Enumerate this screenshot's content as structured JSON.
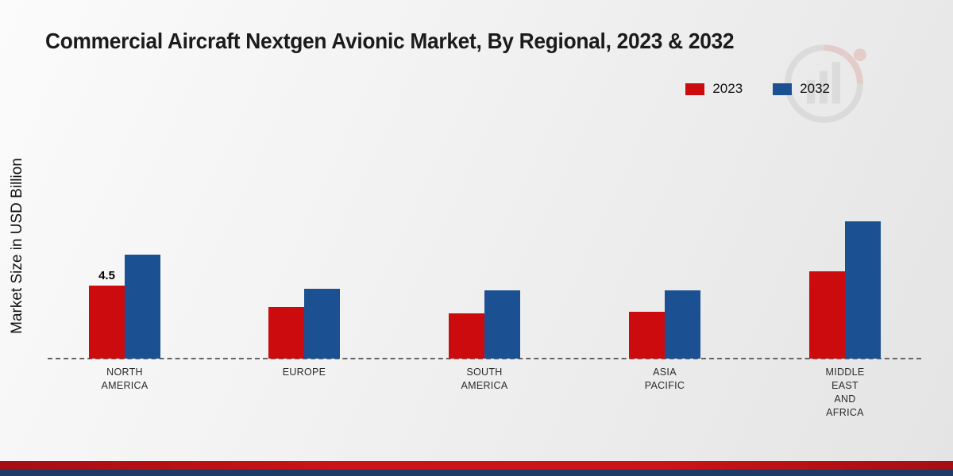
{
  "title": "Commercial Aircraft Nextgen Avionic Market, By Regional, 2023 & 2032",
  "y_axis_label": "Market Size in USD Billion",
  "legend": {
    "items": [
      {
        "label": "2023",
        "color": "#cc0b0e"
      },
      {
        "label": "2032",
        "color": "#1b5192"
      }
    ]
  },
  "chart_data": {
    "type": "bar",
    "title": "Commercial Aircraft Nextgen Avionic Market, By Regional, 2023 & 2032",
    "xlabel": "",
    "ylabel": "Market Size in USD Billion",
    "units": "USD Billion",
    "categories": [
      "NORTH AMERICA",
      "EUROPE",
      "SOUTH AMERICA",
      "ASIA PACIFIC",
      "MIDDLE EAST AND AFRICA"
    ],
    "category_lines": [
      [
        "NORTH",
        "AMERICA"
      ],
      [
        "EUROPE"
      ],
      [
        "SOUTH",
        "AMERICA"
      ],
      [
        "ASIA",
        "PACIFIC"
      ],
      [
        "MIDDLE",
        "EAST",
        "AND",
        "AFRICA"
      ]
    ],
    "series": [
      {
        "name": "2023",
        "color": "#cc0b0e",
        "values": [
          4.5,
          3.2,
          2.8,
          2.9,
          5.4
        ]
      },
      {
        "name": "2032",
        "color": "#1b5192",
        "values": [
          6.4,
          4.3,
          4.2,
          4.2,
          8.5
        ]
      }
    ],
    "data_labels": [
      {
        "series_index": 0,
        "category_index": 0,
        "text": "4.5"
      }
    ],
    "ylim": [
      0,
      20
    ],
    "grid": false,
    "legend_position": "top-right",
    "baseline_style": "dashed"
  },
  "footer": {
    "red_bar_color": "#c91418",
    "blue_bar_color": "#1e3a66"
  },
  "watermark": {
    "name": "market-research-logo"
  }
}
